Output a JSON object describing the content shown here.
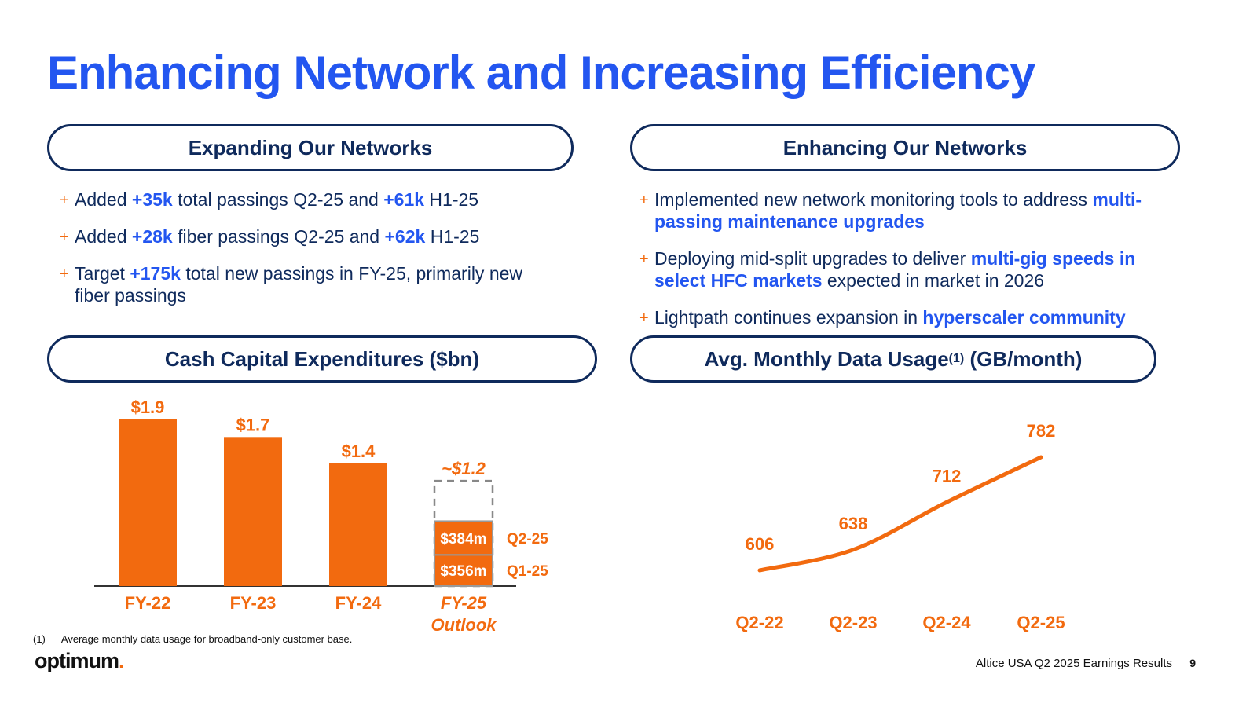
{
  "title": "Enhancing Network and Increasing Efficiency",
  "sections": {
    "expanding": {
      "heading": "Expanding Our Networks",
      "bullets": [
        [
          {
            "t": "Added "
          },
          {
            "t": "+35k",
            "hl": true
          },
          {
            "t": " total passings Q2-25 and "
          },
          {
            "t": "+61k",
            "hl": true
          },
          {
            "t": " H1-25"
          }
        ],
        [
          {
            "t": "Added "
          },
          {
            "t": "+28k",
            "hl": true
          },
          {
            "t": " fiber passings Q2-25 and "
          },
          {
            "t": "+62k",
            "hl": true
          },
          {
            "t": " H1-25"
          }
        ],
        [
          {
            "t": "Target "
          },
          {
            "t": "+175k",
            "hl": true
          },
          {
            "t": " total new passings in FY-25, primarily new fiber passings"
          }
        ]
      ]
    },
    "enhancing": {
      "heading": "Enhancing Our Networks",
      "bullets": [
        [
          {
            "t": "Implemented new network monitoring tools to address "
          },
          {
            "t": "multi-passing maintenance upgrades",
            "hl": true
          }
        ],
        [
          {
            "t": "Deploying mid-split upgrades to deliver "
          },
          {
            "t": "multi-gig speeds in select HFC markets",
            "hl": true
          },
          {
            "t": " expected in market in 2026"
          }
        ],
        [
          {
            "t": "Lightpath continues expansion in "
          },
          {
            "t": "hyperscaler community",
            "hl": true
          }
        ]
      ]
    },
    "capex_heading": "Cash Capital Expenditures ($bn)",
    "usage_heading": "Avg. Monthly Data Usage",
    "usage_heading_sup": "(1)",
    "usage_heading_unit": " (GB/month)"
  },
  "chart_data": [
    {
      "type": "bar",
      "title": "Cash Capital Expenditures ($bn)",
      "categories": [
        "FY-22",
        "FY-23",
        "FY-24",
        "FY-25 Outlook"
      ],
      "values": [
        1.9,
        1.7,
        1.4,
        1.2
      ],
      "data_labels": [
        "$1.9",
        "$1.7",
        "$1.4",
        "~$1.2"
      ],
      "fy25_breakdown": [
        {
          "name": "Q1-25",
          "value": 0.356,
          "label": "$356m"
        },
        {
          "name": "Q2-25",
          "value": 0.384,
          "label": "$384m"
        }
      ],
      "fy25_outlook_style": "dashed outline",
      "ylim": [
        0,
        1.9
      ],
      "grid": false
    },
    {
      "type": "line",
      "title": "Avg. Monthly Data Usage (GB/month)",
      "categories": [
        "Q2-22",
        "Q2-23",
        "Q2-24",
        "Q2-25"
      ],
      "values": [
        606,
        638,
        712,
        782
      ],
      "grid": false
    }
  ],
  "colors": {
    "orange": "#f26a0f",
    "blue": "#2356f0",
    "navy": "#0f2a5c"
  },
  "footnote": {
    "marker": "(1)",
    "text": "Average monthly data usage for broadband-only customer base."
  },
  "logo": {
    "text": "optimum",
    "dot": "."
  },
  "footer": {
    "source": "Altice USA Q2 2025 Earnings Results",
    "page": "9"
  }
}
